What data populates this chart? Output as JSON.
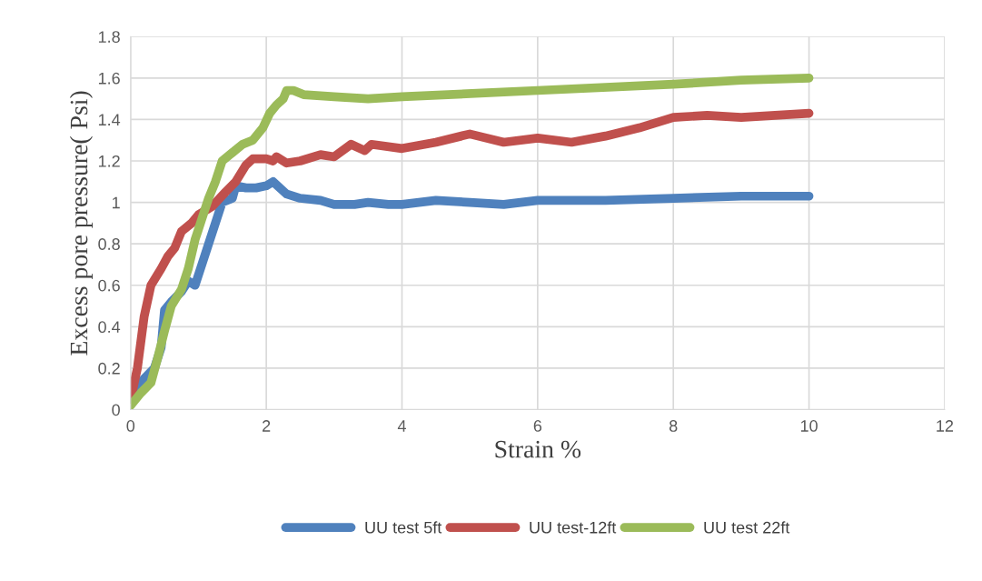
{
  "chart_data": {
    "type": "line",
    "xlabel": "Strain %",
    "ylabel": "Excess pore pressure( Psi)",
    "xlim": [
      0,
      12
    ],
    "xticks": [
      0,
      2,
      4,
      6,
      8,
      10,
      12
    ],
    "ylim": [
      0,
      1.8
    ],
    "yticks": [
      0,
      0.2,
      0.4,
      0.6,
      0.8,
      1,
      1.2,
      1.4,
      1.6,
      1.8
    ],
    "grid": true,
    "legend": "bottom",
    "marker": "none",
    "line_style": "solid",
    "series": [
      {
        "name": "UU test 5ft",
        "color": "#4f81bd",
        "x": [
          0,
          0.1,
          0.2,
          0.35,
          0.45,
          0.5,
          0.6,
          0.75,
          0.85,
          0.95,
          1.05,
          1.2,
          1.35,
          1.5,
          1.55,
          1.7,
          1.85,
          2.0,
          2.1,
          2.3,
          2.5,
          2.8,
          3.0,
          3.3,
          3.5,
          3.8,
          4.0,
          4.5,
          5.0,
          5.5,
          6.0,
          7.0,
          8.0,
          9.0,
          10
        ],
        "values": [
          0.05,
          0.1,
          0.15,
          0.2,
          0.3,
          0.48,
          0.52,
          0.57,
          0.62,
          0.6,
          0.7,
          0.85,
          1.0,
          1.02,
          1.08,
          1.07,
          1.07,
          1.08,
          1.1,
          1.04,
          1.02,
          1.01,
          0.99,
          0.99,
          1.0,
          0.99,
          0.99,
          1.01,
          1.0,
          0.99,
          1.01,
          1.01,
          1.02,
          1.03,
          1.03
        ]
      },
      {
        "name": "UU test-12ft",
        "color": "#c0504d",
        "x": [
          0,
          0.1,
          0.2,
          0.3,
          0.45,
          0.55,
          0.65,
          0.75,
          0.9,
          1.0,
          1.2,
          1.4,
          1.55,
          1.7,
          1.8,
          2.0,
          2.1,
          2.15,
          2.3,
          2.5,
          2.8,
          3.0,
          3.25,
          3.45,
          3.55,
          4.0,
          4.5,
          5.0,
          5.5,
          6.0,
          6.5,
          7.0,
          7.5,
          8.0,
          8.5,
          9.0,
          10
        ],
        "values": [
          0.05,
          0.2,
          0.45,
          0.6,
          0.68,
          0.74,
          0.78,
          0.86,
          0.9,
          0.94,
          0.98,
          1.05,
          1.1,
          1.18,
          1.21,
          1.21,
          1.2,
          1.22,
          1.19,
          1.2,
          1.23,
          1.22,
          1.28,
          1.25,
          1.28,
          1.26,
          1.29,
          1.33,
          1.29,
          1.31,
          1.29,
          1.32,
          1.36,
          1.41,
          1.42,
          1.41,
          1.43
        ]
      },
      {
        "name": "UU test 22ft",
        "color": "#9bbb59",
        "x": [
          0,
          0.15,
          0.3,
          0.4,
          0.5,
          0.6,
          0.75,
          0.85,
          0.95,
          1.05,
          1.15,
          1.25,
          1.35,
          1.5,
          1.65,
          1.8,
          1.95,
          2.05,
          2.15,
          2.25,
          2.3,
          2.4,
          2.55,
          3.0,
          3.5,
          4,
          6,
          8,
          9,
          10
        ],
        "values": [
          0.02,
          0.08,
          0.13,
          0.25,
          0.38,
          0.5,
          0.58,
          0.68,
          0.82,
          0.92,
          1.02,
          1.1,
          1.2,
          1.24,
          1.28,
          1.3,
          1.36,
          1.43,
          1.47,
          1.5,
          1.54,
          1.54,
          1.52,
          1.51,
          1.5,
          1.51,
          1.54,
          1.57,
          1.59,
          1.6
        ]
      }
    ]
  }
}
